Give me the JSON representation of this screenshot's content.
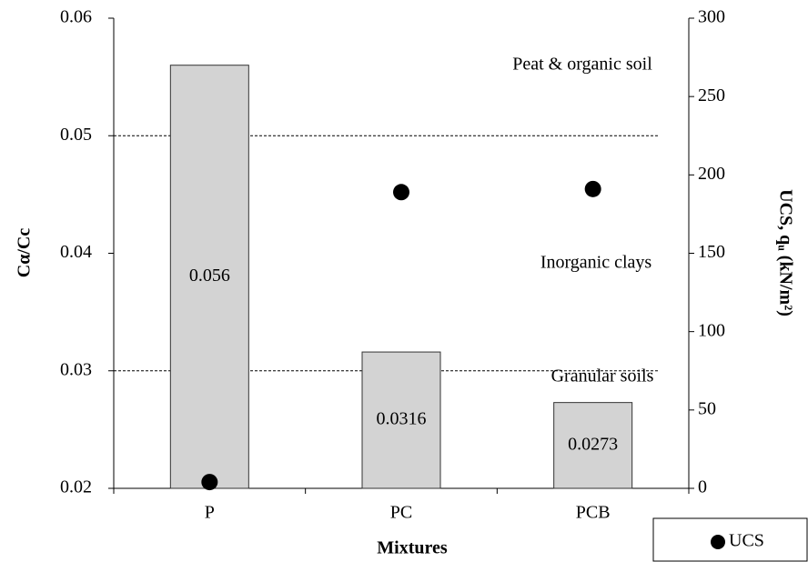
{
  "chart_data": {
    "type": "bar",
    "categories": [
      "P",
      "PC",
      "PCB"
    ],
    "series": [
      {
        "type": "bar",
        "color": "#d3d3d3",
        "values": [
          0.056,
          0.0316,
          0.0273
        ]
      },
      {
        "type": "scatter",
        "name": "UCS",
        "color": "#000000",
        "axis": "y2",
        "values": [
          4,
          189,
          191
        ]
      }
    ],
    "xlabel": "Mixtures",
    "ylabel": "Cα/Cc",
    "y2label": "UCS, qᵤ (kN/m²)",
    "ylim": [
      0.02,
      0.06
    ],
    "yticks": [
      0.02,
      0.03,
      0.04,
      0.05,
      0.06
    ],
    "y2lim": [
      0,
      300
    ],
    "y2ticks": [
      0,
      50,
      100,
      150,
      200,
      250,
      300
    ],
    "hlines": [
      0.05,
      0.03
    ],
    "annotations": [
      "Peat & organic soil",
      "Inorganic clays",
      "Granular soils"
    ],
    "legend": "lower right",
    "grid": false
  }
}
